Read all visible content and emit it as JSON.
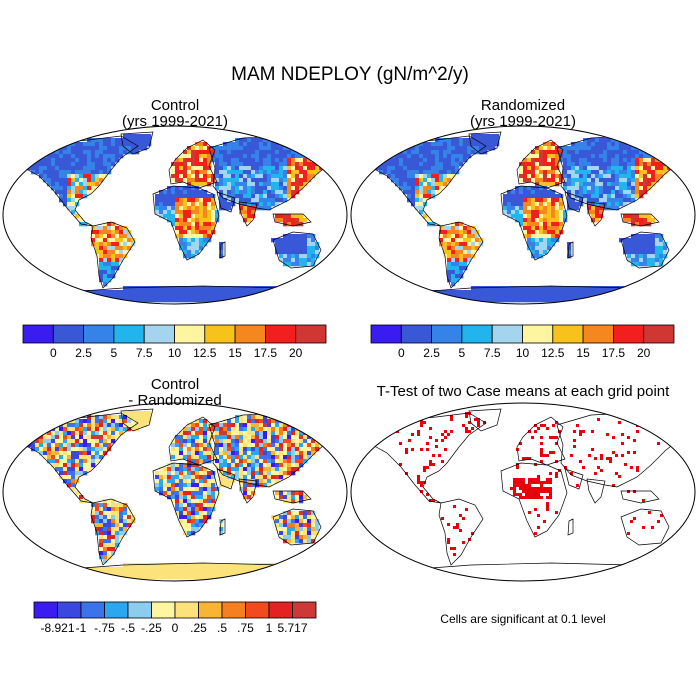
{
  "main_title": "MAM NDEPLOY (gN/m^2/y)",
  "panels": {
    "control": {
      "title": "Control",
      "subtitle": "(yrs 1999-2021)"
    },
    "randomized": {
      "title": "Randomized",
      "subtitle": "(yrs 1999-2021)"
    },
    "difference": {
      "title": "Control",
      "subtitle": "- Randomized"
    },
    "ttest": {
      "title": "T-Test of two Case means at each grid point"
    }
  },
  "significance_note": "Cells are significant at 0.1 level",
  "chart_data": [
    {
      "type": "heatmap",
      "name": "Control",
      "title": "Control",
      "subtitle": "(yrs 1999-2021)",
      "projection": "Robinson, global land",
      "colorbar": {
        "colors": [
          "#3b1cf0",
          "#3858d8",
          "#3582e8",
          "#22b4ec",
          "#a5d4ee",
          "#fdf5a0",
          "#f8c21c",
          "#f6861e",
          "#f1201e",
          "#d03632"
        ],
        "tick_labels": [
          "0",
          "2.5",
          "5",
          "7.5",
          "10",
          "12.5",
          "15",
          "17.5",
          "20"
        ]
      }
    },
    {
      "type": "heatmap",
      "name": "Randomized",
      "title": "Randomized",
      "subtitle": "(yrs 1999-2021)",
      "projection": "Robinson, global land",
      "colorbar": {
        "colors": [
          "#3b1cf0",
          "#3858d8",
          "#3582e8",
          "#22b4ec",
          "#a5d4ee",
          "#fdf5a0",
          "#f8c21c",
          "#f6861e",
          "#f1201e",
          "#d03632"
        ],
        "tick_labels": [
          "0",
          "2.5",
          "5",
          "7.5",
          "10",
          "12.5",
          "15",
          "17.5",
          "20"
        ]
      }
    },
    {
      "type": "heatmap",
      "name": "Control - Randomized",
      "title": "Control",
      "subtitle": "- Randomized",
      "projection": "Robinson, global land",
      "colorbar": {
        "colors": [
          "#3b1cf0",
          "#3a48e0",
          "#3a74e8",
          "#2ca6ee",
          "#8cccee",
          "#fdf5a0",
          "#fce27a",
          "#f8b434",
          "#f48020",
          "#f04a1e",
          "#e42222",
          "#cc3a38"
        ],
        "tick_labels": [
          "-8.921",
          "-1",
          "-.75",
          "-.5",
          "-.25",
          "0",
          ".25",
          ".5",
          ".75",
          "1",
          "5.717"
        ]
      }
    },
    {
      "type": "heatmap",
      "name": "T-Test",
      "title": "T-Test of two Case means at each grid point",
      "mask_color": "#e8000b",
      "note": "Cells are significant at 0.1 level"
    }
  ]
}
